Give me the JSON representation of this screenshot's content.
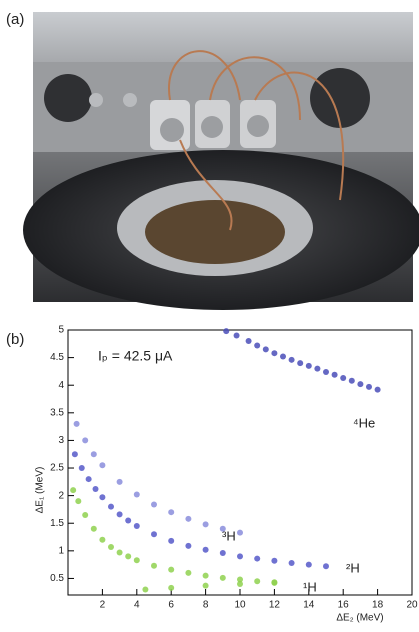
{
  "panel_a": {
    "label": "(a)"
  },
  "chart_data": {
    "type": "scatter",
    "label": "(b)",
    "xlabel": "ΔE₂ (MeV)",
    "ylabel": "ΔE₁ (MeV)",
    "xlim": [
      0,
      20
    ],
    "ylim": [
      0.2,
      5
    ],
    "xticks": [
      2,
      4,
      6,
      8,
      10,
      12,
      14,
      16,
      18,
      20
    ],
    "yticks": [
      0.5,
      1,
      1.5,
      2,
      2.5,
      3,
      3.5,
      4,
      4.5,
      5
    ],
    "annotations": [
      "Iₚ = 42.5 μA",
      "¹H",
      "²H",
      "³H",
      "⁴He"
    ],
    "series": [
      {
        "name": "¹H",
        "color": "#8fd14f",
        "x": [
          0.3,
          0.6,
          1,
          1.5,
          2,
          2.5,
          3,
          3.5,
          4,
          5,
          6,
          7,
          8,
          9,
          10,
          11,
          12,
          4.5,
          6,
          8,
          10,
          12
        ],
        "values": [
          2.1,
          1.9,
          1.65,
          1.4,
          1.2,
          1.07,
          0.97,
          0.9,
          0.83,
          0.73,
          0.66,
          0.6,
          0.55,
          0.51,
          0.48,
          0.45,
          0.42,
          0.3,
          0.33,
          0.37,
          0.4,
          0.43
        ]
      },
      {
        "name": "²H",
        "color": "#5659c9",
        "x": [
          0.4,
          0.8,
          1.2,
          1.6,
          2,
          2.5,
          3,
          3.5,
          4,
          5,
          6,
          7,
          8,
          9,
          10,
          11,
          12,
          13,
          14,
          15
        ],
        "values": [
          2.75,
          2.5,
          2.3,
          2.12,
          1.97,
          1.8,
          1.66,
          1.55,
          1.45,
          1.3,
          1.18,
          1.09,
          1.02,
          0.96,
          0.9,
          0.86,
          0.82,
          0.78,
          0.75,
          0.72
        ]
      },
      {
        "name": "³H",
        "color": "#8a8ddc",
        "x": [
          0.5,
          1,
          1.5,
          2,
          3,
          4,
          5,
          6,
          7,
          8,
          9,
          10
        ],
        "values": [
          3.3,
          3,
          2.75,
          2.55,
          2.25,
          2.02,
          1.84,
          1.7,
          1.58,
          1.48,
          1.4,
          1.33
        ]
      },
      {
        "name": "⁴He",
        "color": "#4a4db8",
        "x": [
          9.2,
          9.8,
          10.5,
          11,
          11.5,
          12,
          12.5,
          13,
          13.5,
          14,
          14.5,
          15,
          15.5,
          16,
          16.5,
          17,
          17.5,
          18
        ],
        "values": [
          4.98,
          4.9,
          4.8,
          4.72,
          4.65,
          4.58,
          4.52,
          4.46,
          4.4,
          4.35,
          4.3,
          4.24,
          4.19,
          4.13,
          4.08,
          4.02,
          3.97,
          3.92
        ]
      }
    ]
  }
}
